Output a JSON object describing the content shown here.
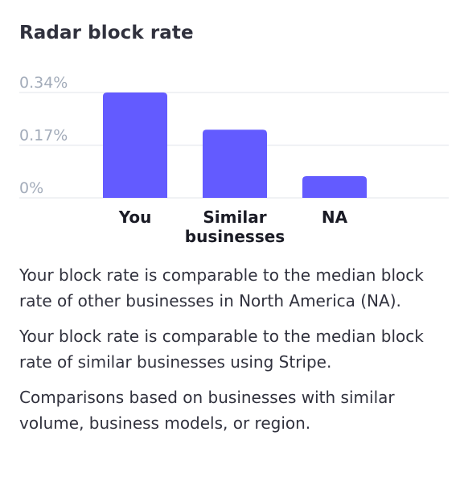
{
  "card": {
    "title": "Radar block rate"
  },
  "chart_data": {
    "type": "bar",
    "title": "Radar block rate",
    "categories": [
      [
        "You"
      ],
      [
        "Similar",
        "businesses"
      ],
      [
        "NA"
      ]
    ],
    "values": [
      0.34,
      0.22,
      0.07
    ],
    "yticks": [
      {
        "value": 0,
        "label": "0%"
      },
      {
        "value": 0.17,
        "label": "0.17%"
      },
      {
        "value": 0.34,
        "label": "0.34%"
      }
    ],
    "ylim": [
      0,
      0.34
    ],
    "xlabel": "",
    "ylabel": "",
    "grid": true,
    "bar_color": "#635bff",
    "grid_color": "#ebeef1"
  },
  "notes": [
    "Your block rate is comparable to the median block rate of other businesses in North America (NA).",
    "Your block rate is comparable to the median block rate of similar businesses using Stripe.",
    "Comparisons based on businesses with similar volume, business models, or region."
  ]
}
